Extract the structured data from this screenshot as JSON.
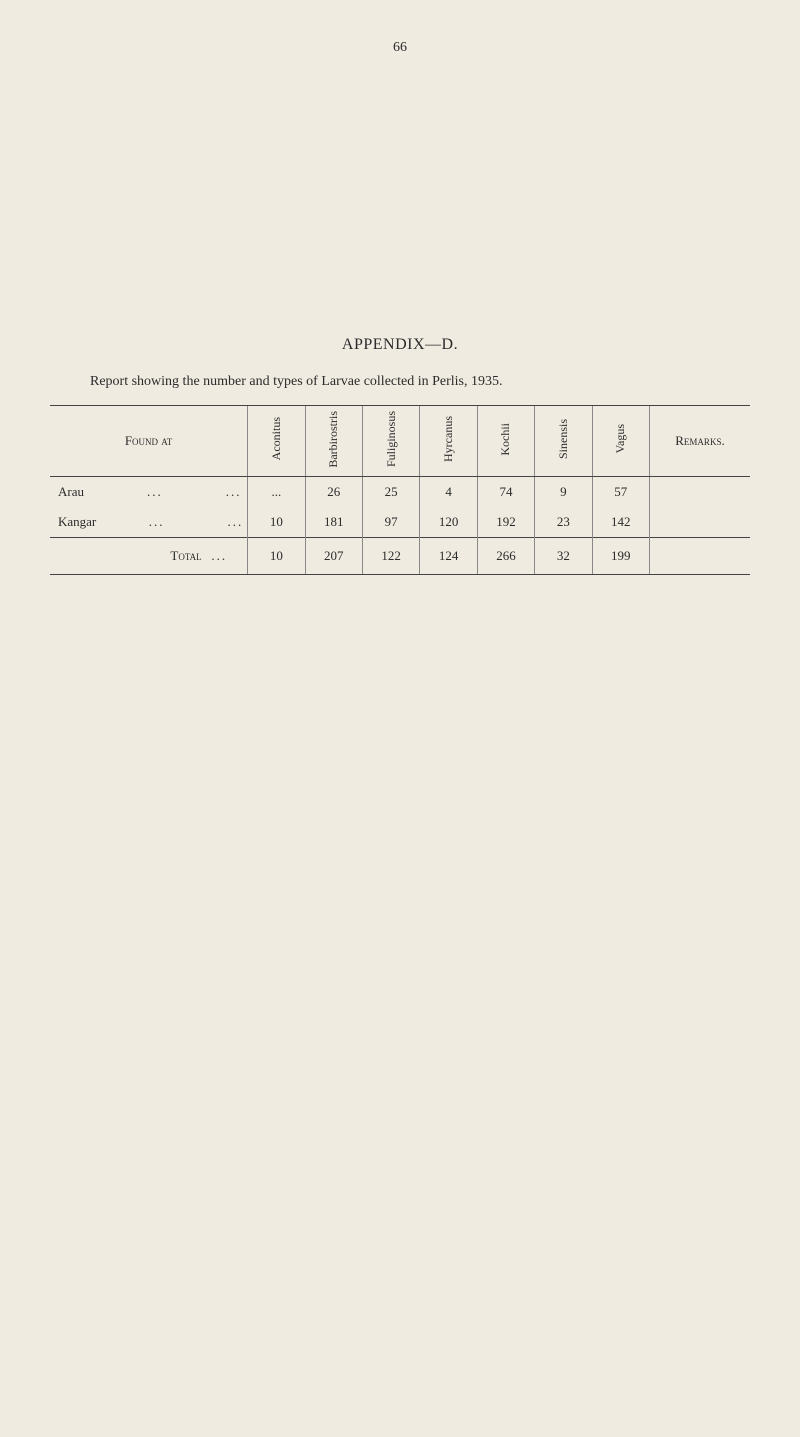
{
  "page_number": "66",
  "appendix_title": "APPENDIX—D.",
  "report_intro": "Report showing the number and types of Larvae collected in Perlis, 1935.",
  "table": {
    "columns": [
      "Found at",
      "Aconitus",
      "Barbirostris",
      "Fuliginosus",
      "Hyrcanus",
      "Kochii",
      "Sinensis",
      "Vagus",
      "Remarks."
    ],
    "rows": [
      {
        "label": "Arau",
        "values": [
          "...",
          "26",
          "25",
          "4",
          "74",
          "9",
          "57",
          ""
        ]
      },
      {
        "label": "Kangar",
        "values": [
          "10",
          "181",
          "97",
          "120",
          "192",
          "23",
          "142",
          ""
        ]
      }
    ],
    "total": {
      "label": "Total",
      "values": [
        "10",
        "207",
        "122",
        "124",
        "266",
        "32",
        "199",
        ""
      ]
    }
  }
}
